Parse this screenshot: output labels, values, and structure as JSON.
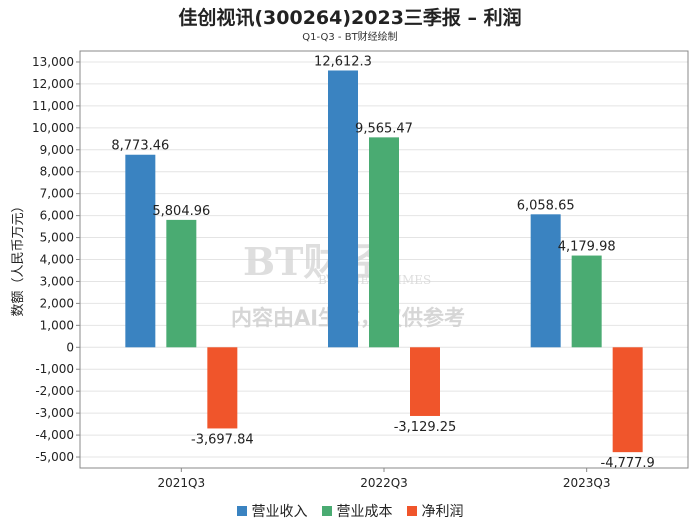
{
  "chart_data": {
    "type": "bar",
    "title": "佳创视讯(300264)2023三季报 – 利润",
    "subtitle": "Q1-Q3 - BT财经绘制",
    "ylabel": "数额（人民币万元）",
    "categories": [
      "2021Q3",
      "2022Q3",
      "2023Q3"
    ],
    "series": [
      {
        "name": "营业收入",
        "color": "#3a83c1",
        "values": [
          8773.46,
          12612.3,
          6058.65
        ],
        "labels": [
          "8,773.46",
          "12,612.3",
          "6,058.65"
        ]
      },
      {
        "name": "营业成本",
        "color": "#4aab72",
        "values": [
          5804.96,
          9565.47,
          4179.98
        ],
        "labels": [
          "5,804.96",
          "9,565.47",
          "4,179.98"
        ]
      },
      {
        "name": "净利润",
        "color": "#f0552b",
        "values": [
          -3697.84,
          -3129.25,
          -4777.9
        ],
        "labels": [
          "-3,697.84",
          "-3,129.25",
          "-4,777.9"
        ]
      }
    ],
    "ylim": [
      -5500,
      13500
    ],
    "yticks": [
      -5000,
      -4000,
      -3000,
      -2000,
      -1000,
      0,
      1000,
      2000,
      3000,
      4000,
      5000,
      6000,
      7000,
      8000,
      9000,
      10000,
      11000,
      12000,
      13000
    ],
    "ytick_labels": [
      "-5,000",
      "-4,000",
      "-3,000",
      "-2,000",
      "-1,000",
      "0",
      "1,000",
      "2,000",
      "3,000",
      "4,000",
      "5,000",
      "6,000",
      "7,000",
      "8,000",
      "9,000",
      "10,000",
      "11,000",
      "12,000",
      "13,000"
    ],
    "grid": true,
    "legend_position": "bottom-center"
  },
  "watermark": {
    "logo_text": "BT财经",
    "logo_sub": "BUSINESS TIMES",
    "notice": "内容由AI生成，仅供参考"
  }
}
